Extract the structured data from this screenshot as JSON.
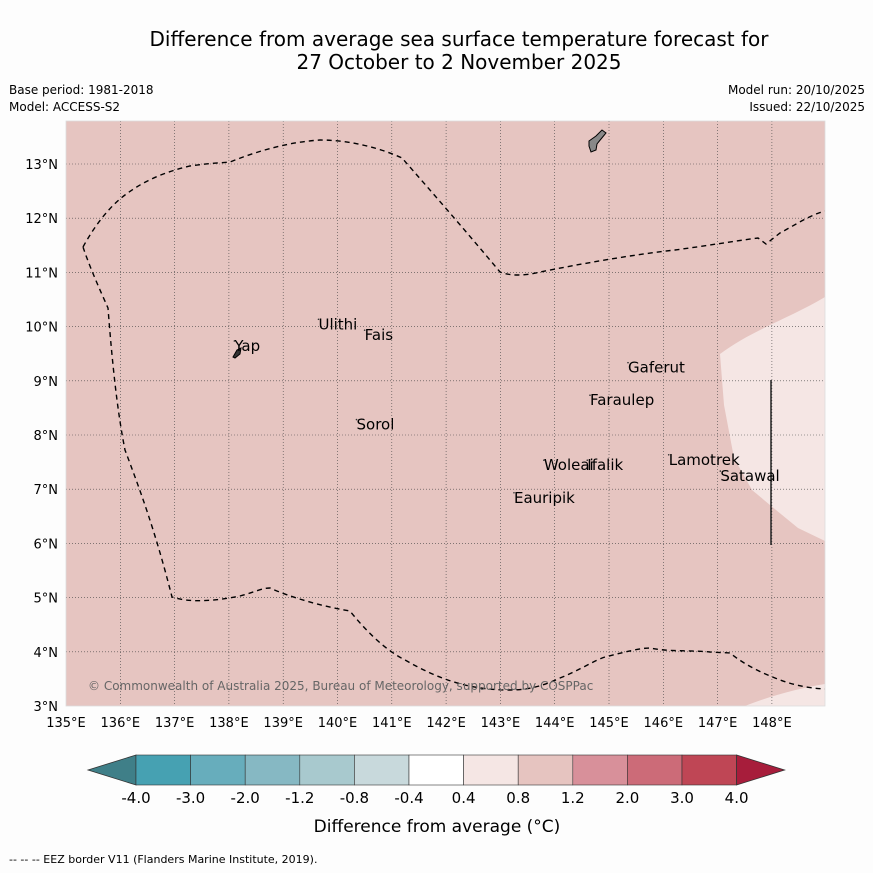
{
  "title": {
    "line1": "Difference from average sea surface temperature forecast for",
    "line2": "27 October to 2 November 2025"
  },
  "meta": {
    "base_period": "Base period: 1981-2018",
    "model": "Model: ACCESS-S2",
    "model_run": "Model run: 20/10/2025",
    "issued": "Issued: 22/10/2025"
  },
  "map": {
    "lon_ticks": [
      "135°E",
      "136°E",
      "137°E",
      "138°E",
      "139°E",
      "140°E",
      "141°E",
      "142°E",
      "143°E",
      "144°E",
      "145°E",
      "146°E",
      "147°E",
      "148°E"
    ],
    "lat_ticks": [
      "3°N",
      "4°N",
      "5°N",
      "6°N",
      "7°N",
      "8°N",
      "9°N",
      "10°N",
      "11°N",
      "12°N",
      "13°N"
    ],
    "places": [
      {
        "name": "Yap",
        "lon": 138.1,
        "lat": 9.55
      },
      {
        "name": "Ulithi",
        "lon": 139.65,
        "lat": 9.95
      },
      {
        "name": "Fais",
        "lon": 140.5,
        "lat": 9.75
      },
      {
        "name": "Gaferut",
        "lon": 145.35,
        "lat": 9.15
      },
      {
        "name": "Faraulep",
        "lon": 144.65,
        "lat": 8.55
      },
      {
        "name": "Sorol",
        "lon": 140.35,
        "lat": 8.1
      },
      {
        "name": "Lamotrek",
        "lon": 146.1,
        "lat": 7.45
      },
      {
        "name": "Woleai",
        "lon": 143.8,
        "lat": 7.35
      },
      {
        "name": "Ifalik",
        "lon": 144.6,
        "lat": 7.35
      },
      {
        "name": "Satawal",
        "lon": 147.05,
        "lat": 7.15
      },
      {
        "name": "Eauripik",
        "lon": 143.25,
        "lat": 6.75
      }
    ],
    "copyright": "© Commonwealth of Australia 2025, Bureau of Meteorology, supported by COSPPac",
    "anomaly_background_class": "0.8 to 1.2",
    "anomaly_patch_class": "0.4 to 0.8"
  },
  "colorbar": {
    "ticks": [
      "-4.0",
      "-3.0",
      "-2.0",
      "-1.2",
      "-0.8",
      "-0.4",
      "0.4",
      "0.8",
      "1.2",
      "2.0",
      "3.0",
      "4.0"
    ],
    "colors": [
      "#46a1b2",
      "#67adbc",
      "#86b8c3",
      "#a8c9ce",
      "#c8d9dc",
      "#ffffff",
      "#f5e6e4",
      "#e6c4c0",
      "#d8909a",
      "#cc6b78",
      "#bf4655"
    ],
    "under_color": "#3f7f88",
    "over_color": "#a71d3b",
    "label": "Difference from average (°C)"
  },
  "footer": {
    "legend": "-- -- -- EEZ border V11 (Flanders Marine Institute, 2019)."
  },
  "colors": {
    "background_anomaly": "#e6c5c1",
    "patch_anomaly": "#f5e6e4",
    "eez_line": "#000000"
  }
}
